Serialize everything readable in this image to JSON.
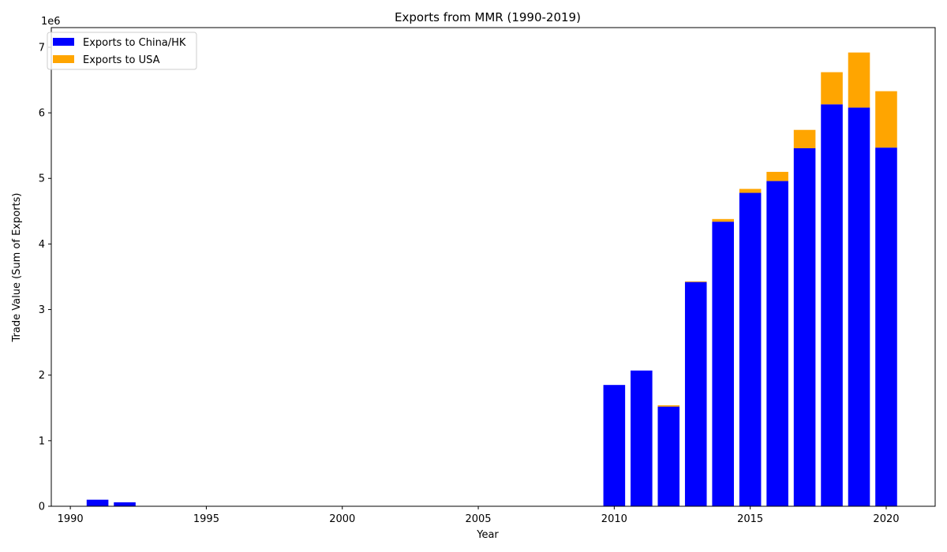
{
  "chart_data": {
    "type": "bar",
    "stacked": true,
    "title": "Exports from MMR (1990-2019)",
    "xlabel": "Year",
    "ylabel": "Trade Value (Sum of Exports)",
    "y_offset_label": "1e6",
    "y_scale": 1000000,
    "xlim": [
      1989.3,
      2021.8
    ],
    "ylim": [
      0,
      7300000
    ],
    "xticks": [
      1990,
      1995,
      2000,
      2005,
      2010,
      2015,
      2020
    ],
    "yticks": [
      0,
      1,
      2,
      3,
      4,
      5,
      6,
      7
    ],
    "bar_width": 0.8,
    "legend_position": "top-left",
    "grid": false,
    "x": [
      1991,
      1992,
      2010,
      2011,
      2012,
      2013,
      2014,
      2015,
      2016,
      2017,
      2018,
      2019,
      2020
    ],
    "series": [
      {
        "name": "Exports to China/HK",
        "color": "#0000ff",
        "values": [
          100000,
          60000,
          1850000,
          2070000,
          1520000,
          3420000,
          4340000,
          4780000,
          4960000,
          5460000,
          6130000,
          6080000,
          5470000
        ]
      },
      {
        "name": "Exports to USA",
        "color": "#ffa500",
        "values": [
          0,
          0,
          0,
          0,
          20000,
          10000,
          40000,
          60000,
          140000,
          280000,
          490000,
          840000,
          860000
        ]
      }
    ]
  }
}
